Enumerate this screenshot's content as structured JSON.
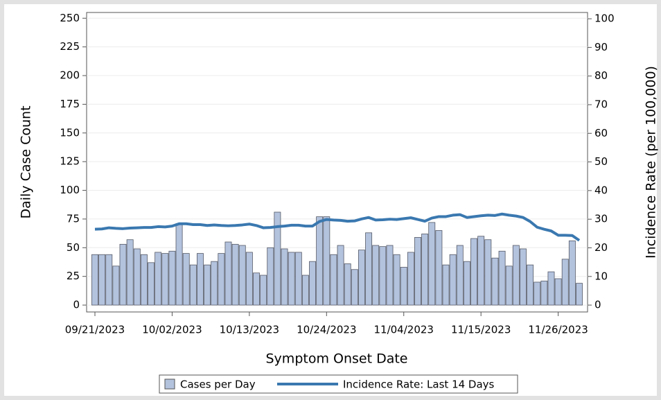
{
  "chart_data": {
    "type": "bar-line",
    "x_label": "Symptom Onset Date",
    "y_label": "Daily Case Count",
    "y2_label": "Incidence Rate (per 100,000)",
    "categories": [
      "09/21/2023",
      null,
      null,
      null,
      null,
      null,
      null,
      null,
      null,
      null,
      null,
      "10/02/2023",
      null,
      null,
      null,
      null,
      null,
      null,
      null,
      null,
      null,
      null,
      "10/13/2023",
      null,
      null,
      null,
      null,
      null,
      null,
      null,
      null,
      null,
      null,
      "10/24/2023",
      null,
      null,
      null,
      null,
      null,
      null,
      null,
      null,
      null,
      null,
      "11/04/2023",
      null,
      null,
      null,
      null,
      null,
      null,
      null,
      null,
      null,
      null,
      "11/15/2023",
      null,
      null,
      null,
      null,
      null,
      null,
      null,
      null,
      null,
      null,
      "11/26/2023",
      null,
      null,
      null
    ],
    "series": [
      {
        "name": "Cases per Day",
        "type": "bar",
        "color": "#b3c2dd",
        "values": [
          44,
          44,
          44,
          34,
          53,
          57,
          49,
          44,
          37,
          46,
          45,
          47,
          71,
          45,
          35,
          45,
          35,
          38,
          45,
          55,
          53,
          52,
          46,
          28,
          26,
          50,
          81,
          49,
          46,
          46,
          26,
          38,
          77,
          77,
          44,
          52,
          36,
          31,
          48,
          63,
          52,
          51,
          52,
          44,
          33,
          46,
          59,
          62,
          72,
          65,
          35,
          44,
          52,
          38,
          58,
          60,
          57,
          41,
          47,
          34,
          52,
          49,
          35,
          20,
          21,
          29,
          23,
          40,
          56,
          19
        ]
      },
      {
        "name": "Incidence Rate: Last 14 Days",
        "type": "line",
        "axis": "y2",
        "color": "#3a78b0",
        "values": [
          26.5,
          26.6,
          27,
          26.8,
          26.7,
          26.9,
          27,
          27.1,
          27.1,
          27.4,
          27.3,
          27.6,
          28.4,
          28.4,
          28.1,
          28.1,
          27.8,
          28,
          27.8,
          27.7,
          27.8,
          28,
          28.3,
          27.8,
          27,
          27.1,
          27.4,
          27.6,
          27.9,
          27.9,
          27.6,
          27.6,
          29.2,
          29.9,
          29.7,
          29.6,
          29.3,
          29.4,
          30.1,
          30.6,
          29.7,
          29.8,
          30,
          29.9,
          30.2,
          30.5,
          29.9,
          29.3,
          30.4,
          30.9,
          30.9,
          31.4,
          31.6,
          30.6,
          30.9,
          31.2,
          31.4,
          31.3,
          31.8,
          31.4,
          31.1,
          30.6,
          29.2,
          27.2,
          26.5,
          25.9,
          24.4,
          24.4,
          24.3,
          22.6
        ]
      }
    ],
    "ylim": [
      -6,
      255
    ],
    "yticks": [
      0,
      25,
      50,
      75,
      100,
      125,
      150,
      175,
      200,
      225,
      250
    ],
    "y2lim": [
      -2.4,
      102.2
    ],
    "y2ticks": [
      0,
      10,
      20,
      30,
      40,
      50,
      60,
      70,
      80,
      90,
      100
    ],
    "grid": true,
    "legend": "bottom"
  }
}
